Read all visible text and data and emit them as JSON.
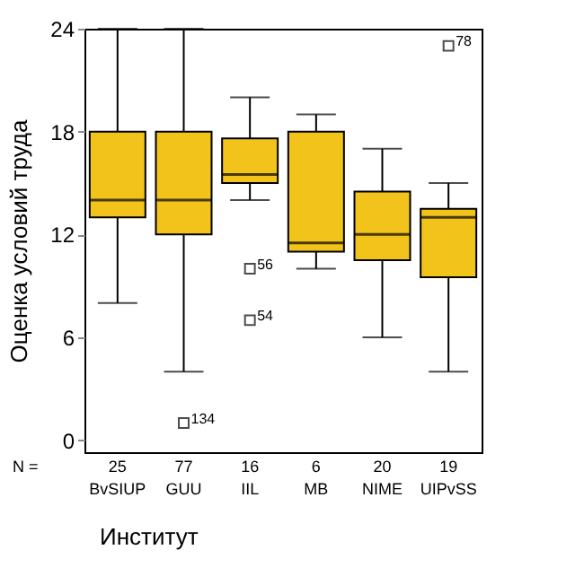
{
  "chart_data": {
    "type": "box",
    "xlabel": "Институт",
    "ylabel": "Оценка условий труда",
    "categories": [
      "BvSIUP",
      "GUU",
      "IIL",
      "MB",
      "NIME",
      "UIPvSS"
    ],
    "color": "#f2c31a",
    "boxes": [
      {
        "low": 8,
        "q1": 13,
        "median": 14,
        "q3": 18,
        "high": 24
      },
      {
        "low": 4,
        "q1": 12,
        "median": 14,
        "q3": 18,
        "high": 24,
        "outliers": [
          1
        ]
      },
      {
        "low": 14,
        "q1": 15,
        "median": 15.5,
        "q3": 17.6,
        "high": 20,
        "outliers": [
          10,
          7
        ]
      },
      {
        "low": 10,
        "q1": 11,
        "median": 11.5,
        "q3": 18,
        "high": 19
      },
      {
        "low": 6,
        "q1": 10.5,
        "median": 12,
        "q3": 14.5,
        "high": 17
      },
      {
        "low": 4,
        "q1": 9.5,
        "median": 13,
        "q3": 13.5,
        "high": 15,
        "outliers": [
          23
        ]
      }
    ],
    "ylim": [
      -0.7,
      24
    ],
    "yticks": [
      0,
      6,
      12,
      18,
      24
    ],
    "annotations": [
      "N =",
      "25",
      "77",
      "16",
      "6",
      "20",
      "19",
      "134",
      "56",
      "54",
      "78"
    ]
  }
}
